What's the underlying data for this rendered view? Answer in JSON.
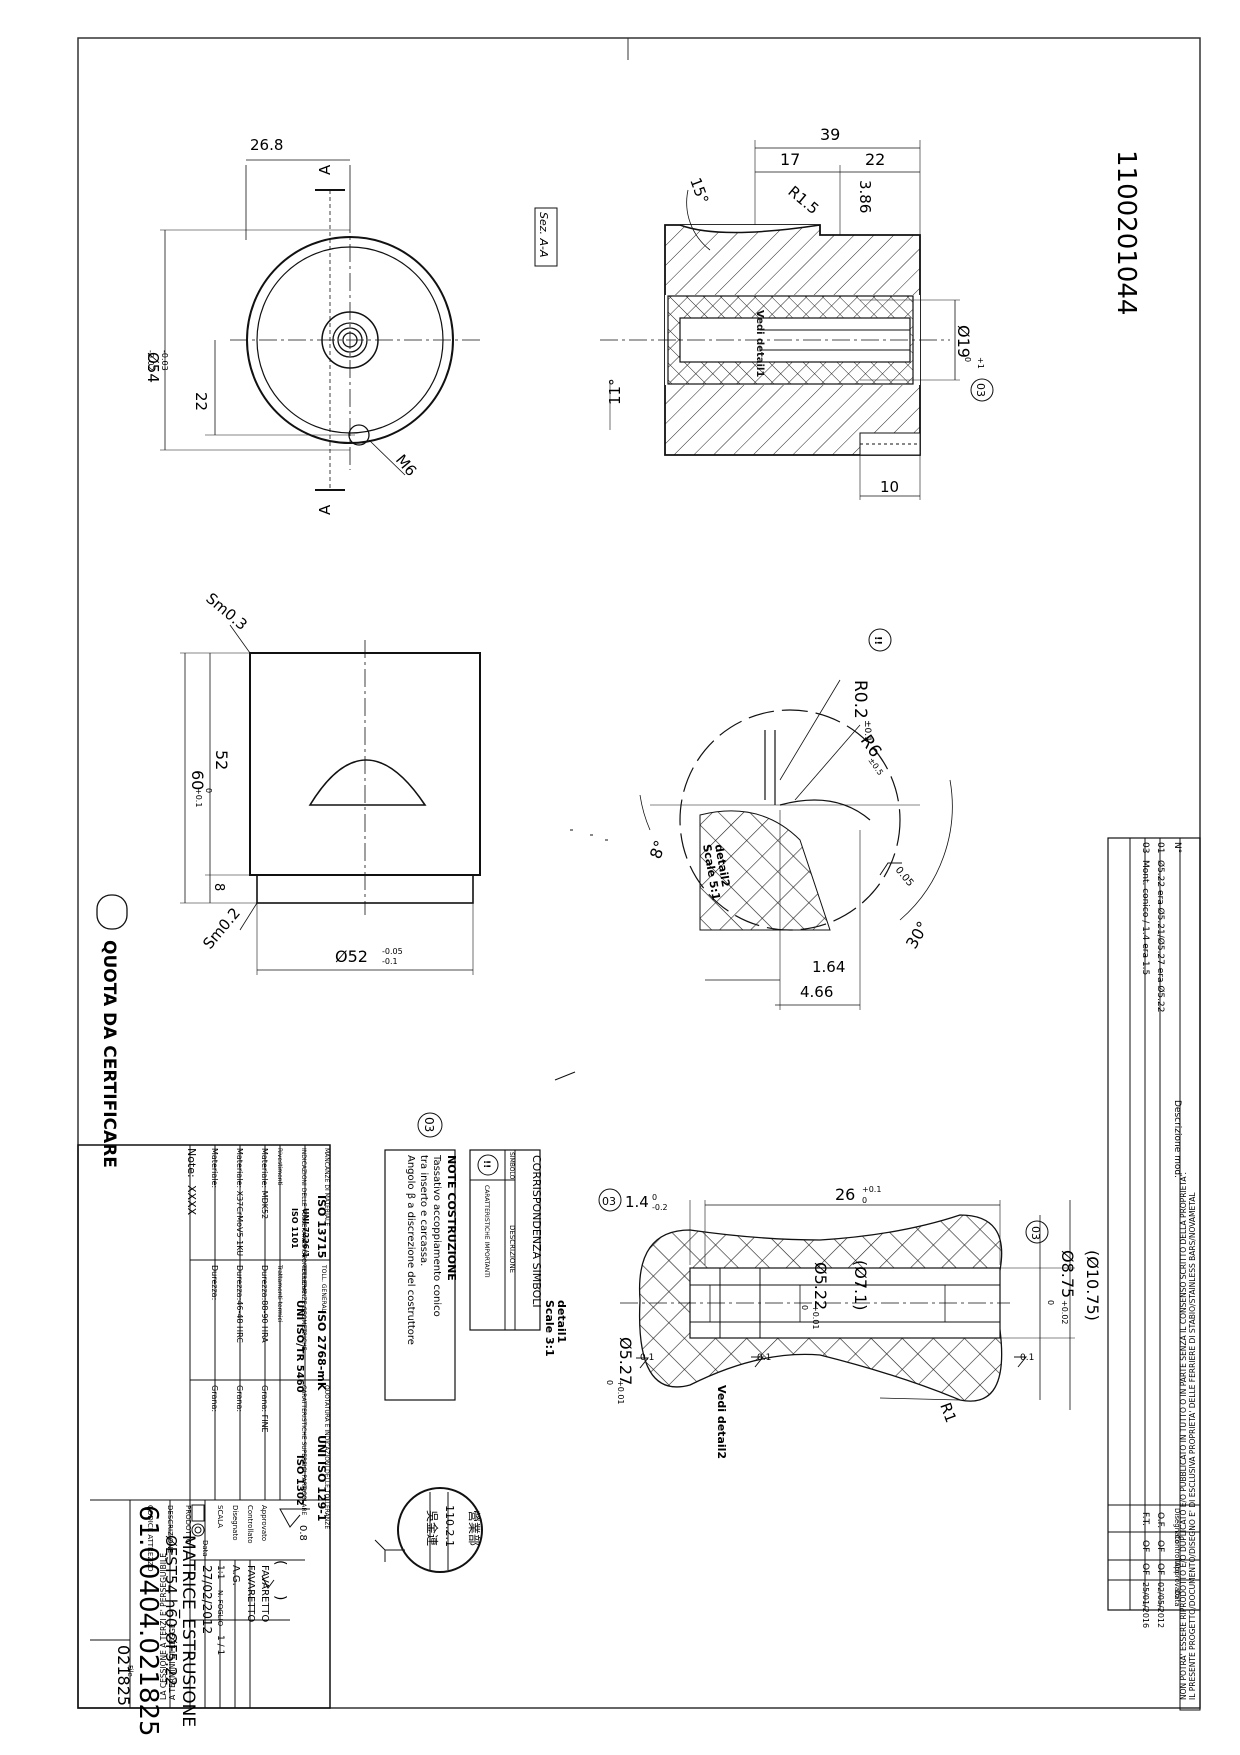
{
  "header_note": "1100201044",
  "section_label": "Sez. A-A",
  "views": {
    "front": {
      "dim_top": "26.8",
      "section_mark": "A",
      "dia": "Ø54",
      "dia_tol_upper": "-0.02",
      "dia_tol_lower": "-0.03",
      "dim_22": "22",
      "thread": "M6"
    },
    "section": {
      "dim_39": "39",
      "dim_17": "17",
      "dim_22": "22",
      "radius": "R1.5",
      "dim_386": "3.86",
      "angle_15": "15°",
      "angle_11": "11°",
      "detail_ref": "Vedi detail1",
      "dia19": "Ø19",
      "dia19_tol": "+1",
      "dia19_tol2": "0",
      "cert_03": "03",
      "dim_10": "10"
    },
    "side": {
      "sm03": "Sm0.3",
      "sm02": "Sm0.2",
      "dim_52": "52",
      "dim_60": "60",
      "dim_60_tol": "+0.1",
      "dim_60_tol2": "0",
      "dim_8": "8",
      "dia52": "Ø52",
      "dia52_tol_upper": "-0.05",
      "dia52_tol_lower": "-0.1"
    },
    "detail2": {
      "symbol": "!!",
      "r02": "R0.2",
      "r02_tol": "±0.1",
      "r6": "R6",
      "r6_tol": "±0.5",
      "angle_8": "8°",
      "angle_30": "30°",
      "label": "detail2",
      "scale": "Scale 5:1",
      "rough": "0.05",
      "dim_164": "1.64",
      "dim_466": "4.66"
    },
    "detail1": {
      "label": "detail1",
      "scale": "Scale 3:1",
      "cert_03a": "03",
      "cert_03b": "03",
      "dim_14": "1.4",
      "dim_14_tol_a": "0",
      "dim_14_tol_b": "-0.2",
      "dim_26": "26",
      "dim_26_tol_a": "+0.1",
      "dim_26_tol_b": "0",
      "dia1075": "(Ø10.75)",
      "dia875": "Ø8.75",
      "dia875_tol_a": "+0.02",
      "dia875_tol_b": "0",
      "dia71": "(Ø7.1)",
      "dia522": "Ø5.22",
      "dia522_tol_a": "+0.01",
      "dia522_tol_b": "0",
      "dia527": "Ø5.27",
      "dia527_tol_a": "+0.01",
      "dia527_tol_b": "0",
      "rough_a": "0.1",
      "rough_b": "0.1",
      "rough_c": "0.1",
      "r1": "R1",
      "see_detail2": "Vedi detail2"
    }
  },
  "certify_legend": "QUOTA DA CERTIFICARE",
  "revisions": {
    "head_n": "N°",
    "head_desc": "Descrizione mod.",
    "rows": [
      {
        "n": "01",
        "desc": "Ø5.22 era Ø5.21/Ø5.27 era Ø5.22"
      },
      {
        "n": "03",
        "desc": "Mont. conico / 1.4 era 1.5"
      }
    ],
    "head_drawn": "Disegnato",
    "head_checked": "Controllato",
    "head_approved": "Approvato",
    "head_date": "Data",
    "signoff_rows": [
      {
        "drawn": "O.F.",
        "checked": "OF",
        "approved": "OF",
        "date": "02/05/2012"
      },
      {
        "drawn": "F.T.",
        "checked": "OF",
        "approved": "OF",
        "date": "25/01/2016"
      }
    ]
  },
  "legal_line1": "IL PRESENTE PROGETTO/DOCUMENTO/DISEGNO E' DI ESCLUSIVA PROPRIETA' DELLE FERRIERE DI STABIO/STAINLESS BARS/NOVAMETAL",
  "legal_line2": "NON POTRA' ESSERE RIPRODOTTO E/O DUPLICATO E/O PUBBLICATO IN TUTTO O IN PARTE SENZA IL CONSENSO SCRITTO DELLA PROPRIETA'.",
  "legal_line3": "A TERMINI DI LEGGE",
  "legal_line4": "LA CESSIONE A TERZI E' PERSEGUIBILE",
  "symbols_box": {
    "title": "CORRISPONDENZA SIMBOLI",
    "col_symbol": "SIMBOLO",
    "col_desc": "DESCRIZIONE",
    "row_symbol": "!!",
    "row_desc": "CARATTERISTICHE IMPORTANTI"
  },
  "notes_box": {
    "cert": "03",
    "title": "NOTE COSTRUZIONE",
    "line1": "Tassativo accoppiamento conico",
    "line2": "tra inserto e carcassa.",
    "line3": "Angolo β a discrezione del costruttore"
  },
  "title_block": {
    "mancanze": "MANCANZE DI MATERIALE",
    "iso13715": "ISO 13715",
    "toll_generali": "TOLL. GENERALI",
    "iso2768": "ISO 2768-mK",
    "qualita": "QUOTATURA E INDICAZIONI DELLE TOLLERANZE",
    "uni_iso_129": "UNI ISO 129-1",
    "indicazioni": "INDICAZIONI DELLE TOLLERANZE GEOMETRICHE",
    "uni7226": "UNI 7226/1",
    "iso1101": "ISO 1101",
    "toll_geom": "TOLLERANZE GEOMETRICHE",
    "uni_iso_tr5460": "UNI ISO/TR 5460",
    "caratteristiche": "CARATTERISTICHE SUPERFICI PARTICOLARE",
    "iso1302": "ISO 1302",
    "rivestimenti": "Rivestimenti",
    "trattamenti": "Trattamenti termici",
    "mat1_label": "Materiale: MDK52",
    "mat1_hard": "Durezza:88-90 HRA",
    "mat1_grain": "Grana: FINE",
    "mat2_label": "Materiale: X37CrMoV5 1KU",
    "mat2_hard": "Durezza:46-48 HRC",
    "mat2_grain": "Grana:",
    "mat3_label": "Materiale:",
    "mat3_hard": "Durezza:",
    "mat3_grain": "Grana:",
    "note_label": "Note:",
    "note_value": "XXXX",
    "rough_general": "0.8",
    "approved_label": "Approvato",
    "approved_value": "FAVARETTO",
    "checked_label": "Controllato",
    "checked_value": "FAVARETTO",
    "drawn_label": "Disegnato",
    "drawn_value": "A.G.",
    "scale_label": "SCALA",
    "scale_value": "1:1",
    "sheet_label": "N. FOGLIO",
    "sheet_value": "1 / 1",
    "date_label": "Data",
    "date_value": "27/02/2012",
    "product_label": "PRODOTTO",
    "product_value": "MATRICE_ESTRUSIONE",
    "desc_label": "DESCRIZIONE",
    "desc_value": "ØEST54 h60 ØF5.22",
    "code_label": "CODICE ATTREZZO",
    "code_value": "61.00404.021825",
    "file_label": "File",
    "file_value": "021825"
  },
  "stamp": {
    "top": "營業部",
    "middle": "110.2.1",
    "bottom": "吳金連"
  }
}
